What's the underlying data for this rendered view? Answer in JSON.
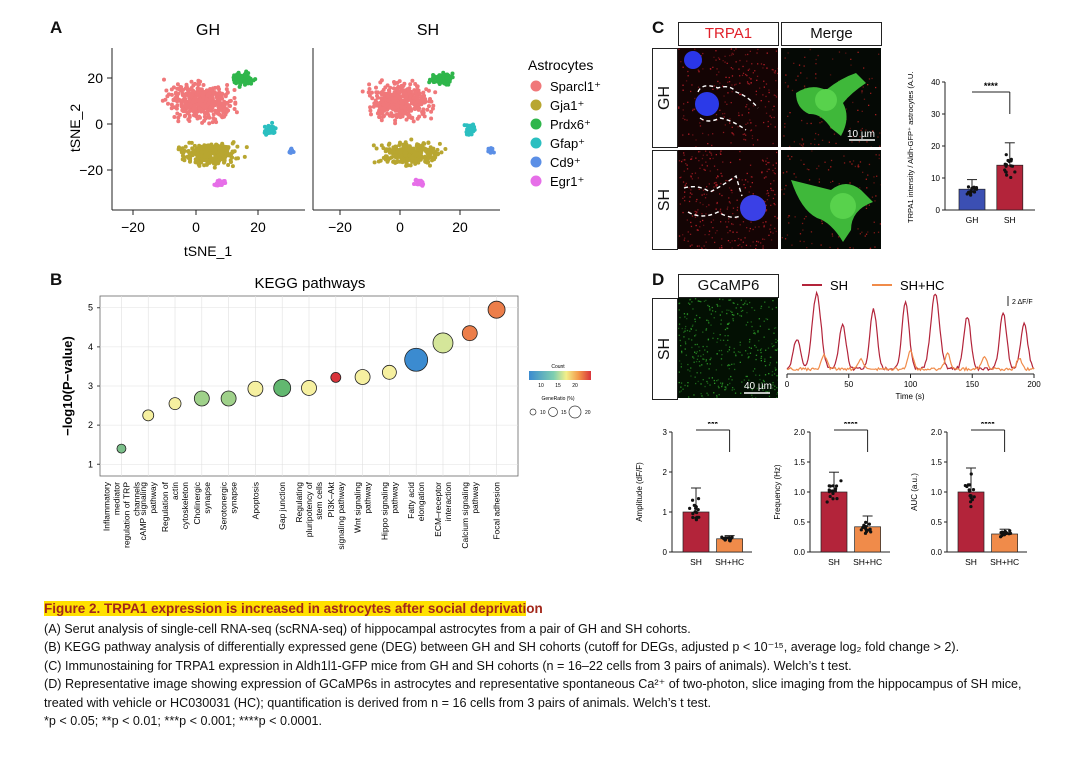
{
  "panel_letters": {
    "a": "A",
    "b": "B",
    "c": "C",
    "d": "D"
  },
  "panel_a": {
    "titles": [
      "GH",
      "SH"
    ],
    "xlabel": "tSNE_1",
    "ylabel": "tSNE_2",
    "xticks": [
      "−20",
      "0",
      "20"
    ],
    "yticks": [
      "20",
      "0",
      "−20"
    ],
    "legend_title": "Astrocytes",
    "legend": [
      {
        "label": "Sparcl1⁺",
        "color": "#f0787a"
      },
      {
        "label": "Gja1⁺",
        "color": "#b8a630"
      },
      {
        "label": "Prdx6⁺",
        "color": "#2fb64b"
      },
      {
        "label": "Gfap⁺",
        "color": "#2bbfc0"
      },
      {
        "label": "Cd9⁺",
        "color": "#5b8fe6"
      },
      {
        "label": "Egr1⁺",
        "color": "#e66ee8"
      }
    ]
  },
  "panel_c": {
    "col_labels": [
      "TRPA1",
      "Merge"
    ],
    "row_labels": [
      "GH",
      "SH"
    ],
    "scale": "10 µm"
  },
  "panel_d": {
    "image_label": "GCaMP6",
    "row_label": "SH",
    "scale": "40 µm",
    "legend": [
      {
        "label": "SH",
        "color": "#b3243a"
      },
      {
        "label": "SH+HC",
        "color": "#f08b4a"
      }
    ],
    "trace_scale": "2 ΔF/F",
    "time_label": "Time (s)",
    "time_ticks": [
      "0",
      "50",
      "100",
      "150",
      "200"
    ]
  },
  "chart_data": [
    {
      "type": "scatter",
      "title": "KEGG pathways",
      "ylabel": "−log10(P−value)",
      "ylim": [
        0.7,
        5.3
      ],
      "yticks": [
        "1",
        "2",
        "3",
        "4",
        "5"
      ],
      "categories": [
        "Inflammatory mediator regulation of TRP channels",
        "cAMP signaling pathway",
        "Regulation of actin cytoskeleton",
        "Cholinergic synapse",
        "Serotonergic synapse",
        "Apoptosis",
        "Gap junction",
        "Regulating pluripotency of stem cells",
        "PI3K–Akt signaling pathway",
        "Wnt signaling pathway",
        "Hippo signaling pathway",
        "Fatty acid elongation",
        "ECM–receptor interaction",
        "Calcium signaling pathway",
        "Focal adhesion"
      ],
      "values": [
        1.4,
        2.25,
        2.55,
        2.68,
        2.68,
        2.93,
        2.95,
        2.95,
        3.22,
        3.23,
        3.35,
        3.67,
        4.1,
        4.35,
        4.95
      ],
      "colors": [
        "#7bbf8a",
        "#f6f0a0",
        "#f6f0a0",
        "#9fd18a",
        "#9fd18a",
        "#f6f0a0",
        "#62b870",
        "#f6f0a0",
        "#d9343b",
        "#f6f0a0",
        "#f6f0a0",
        "#3b8bd0",
        "#d5e69a",
        "#ec7e4a",
        "#ec7e4a"
      ],
      "sizes": [
        6,
        8,
        9,
        12,
        12,
        12,
        14,
        12,
        7,
        12,
        11,
        20,
        17,
        12,
        14
      ],
      "count_legend": {
        "title": "Count",
        "ticks": [
          "10",
          "15",
          "20"
        ]
      },
      "generatio_legend": {
        "title": "GeneRatio (%)",
        "ticks": [
          "10",
          "15",
          "20"
        ]
      }
    },
    {
      "type": "bar",
      "ylabel": "TRPA1 intensity / Aldh-GFP⁺ astrocytes (A.U.)",
      "categories": [
        "GH",
        "SH"
      ],
      "values": [
        6.5,
        14.0
      ],
      "errors": [
        3,
        7
      ],
      "ylim": [
        0,
        40
      ],
      "yticks": [
        "0",
        "10",
        "20",
        "30",
        "40"
      ],
      "significance": "****",
      "colors": [
        "#3b4fb3",
        "#b3243a"
      ]
    },
    {
      "type": "bar",
      "ylabel": "Amplitude (dF/F)",
      "categories": [
        "SH",
        "SH+HC"
      ],
      "values": [
        1.0,
        0.33
      ],
      "errors": [
        0.6,
        0.08
      ],
      "ylim": [
        0,
        3
      ],
      "yticks": [
        "0",
        "1",
        "2",
        "3"
      ],
      "significance": "***",
      "colors": [
        "#b3243a",
        "#f08b4a"
      ]
    },
    {
      "type": "bar",
      "ylabel": "Frequency (Hz)",
      "categories": [
        "SH",
        "SH+HC"
      ],
      "values": [
        1.0,
        0.42
      ],
      "errors": [
        0.33,
        0.18
      ],
      "ylim": [
        0,
        2
      ],
      "yticks": [
        "0.0",
        "0.5",
        "1.0",
        "1.5",
        "2.0"
      ],
      "significance": "****",
      "colors": [
        "#b3243a",
        "#f08b4a"
      ]
    },
    {
      "type": "bar",
      "ylabel": "AUC (a.u.)",
      "categories": [
        "SH",
        "SH+HC"
      ],
      "values": [
        1.0,
        0.3
      ],
      "errors": [
        0.4,
        0.08
      ],
      "ylim": [
        0,
        2
      ],
      "yticks": [
        "0.0",
        "0.5",
        "1.0",
        "1.5",
        "2.0"
      ],
      "significance": "****",
      "colors": [
        "#b3243a",
        "#f08b4a"
      ]
    }
  ],
  "caption": {
    "title_a": "Figure 2. TRPA1 expression is increased in astrocytes after social deprivati",
    "title_b": "on",
    "a": "(A) Serut analysis of single-cell RNA-seq (scRNA-seq) of hippocampal astrocytes from a pair of GH and SH cohorts.",
    "b": "(B) KEGG pathway analysis of differentially expressed gene (DEG) between GH and SH cohorts (cutoff for DEGs, adjusted p < 10⁻¹⁵, average log₂ fold change > 2).",
    "c": "(C) Immunostaining for TRPA1 expression in Aldh1l1-GFP mice from GH and SH cohorts (n = 16–22 cells from 3 pairs of animals). Welch’s t test.",
    "d": "(D) Representative image showing expression of GCaMP6s in astrocytes and representative spontaneous Ca²⁺ of two-photon, slice imaging from the hippocampus of SH mice, treated with vehicle or HC030031 (HC); quantification is derived from n = 16 cells from 3 pairs of animals. Welch’s t test.",
    "p": "*p < 0.05; **p < 0.01; ***p < 0.001; ****p < 0.0001."
  }
}
